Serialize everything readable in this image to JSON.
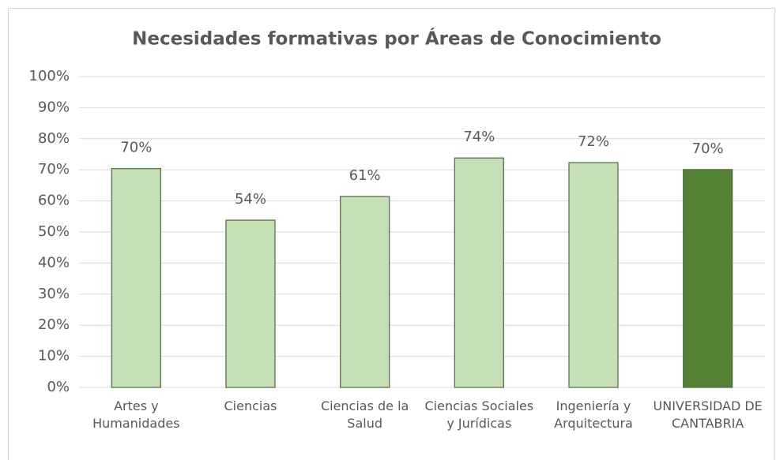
{
  "chart_data": {
    "type": "bar",
    "title": "Necesidades formativas por Áreas de Conocimiento",
    "categories": [
      "Artes y Humanidades",
      "Ciencias",
      "Ciencias de la Salud",
      "Ciencias Sociales y Jurídicas",
      "Ingeniería y Arquitectura",
      "UNIVERSIDAD DE CANTABRIA"
    ],
    "values": [
      70.4,
      53.8,
      61.4,
      73.8,
      72.3,
      70.1
    ],
    "value_labels": [
      "70%",
      "54%",
      "61%",
      "74%",
      "72%",
      "70%"
    ],
    "colors": [
      "#c5e0b4",
      "#c5e0b4",
      "#c5e0b4",
      "#c5e0b4",
      "#c5e0b4",
      "#548235"
    ],
    "ylim": [
      0,
      100
    ],
    "yticks": [
      {
        "value": 0,
        "label": "0%"
      },
      {
        "value": 10,
        "label": "10%"
      },
      {
        "value": 20,
        "label": "20%"
      },
      {
        "value": 30,
        "label": "30%"
      },
      {
        "value": 40,
        "label": "40%"
      },
      {
        "value": 50,
        "label": "50%"
      },
      {
        "value": 60,
        "label": "60%"
      },
      {
        "value": 70,
        "label": "70%"
      },
      {
        "value": 80,
        "label": "80%"
      },
      {
        "value": 90,
        "label": "90%"
      },
      {
        "value": 100,
        "label": "100%"
      }
    ],
    "grid": true
  }
}
